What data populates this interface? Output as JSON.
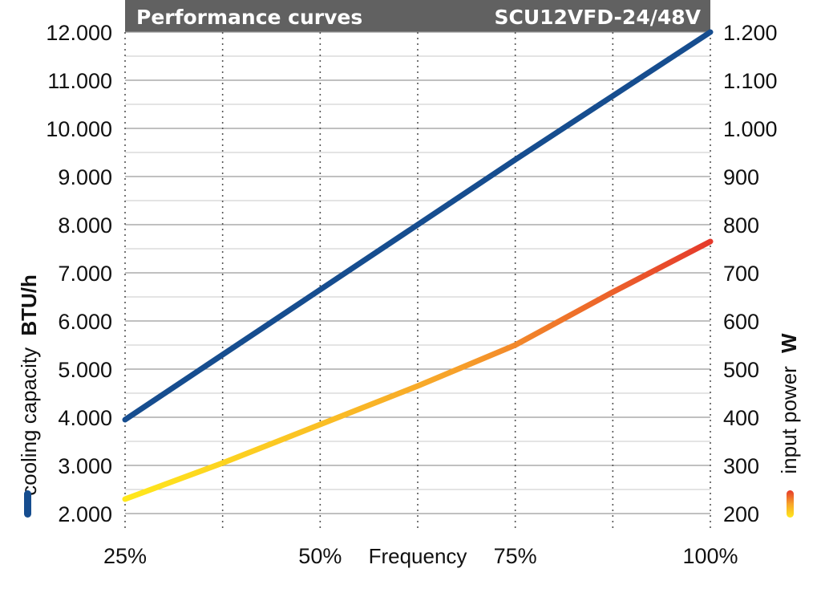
{
  "chart_data": {
    "type": "line",
    "title": "Performance curves",
    "subtitle": "SCU12VFD-24/48V",
    "xlabel": "Frequency",
    "x": [
      25,
      50,
      75,
      100
    ],
    "x_tick_labels": [
      "25%",
      "50%",
      "75%",
      "100%"
    ],
    "xlim": [
      25,
      100
    ],
    "y_left": {
      "label": "cooling capacity",
      "unit": "BTU/h",
      "ylim": [
        2000,
        12000
      ],
      "tick_labels": [
        "2.000",
        "3.000",
        "4.000",
        "5.000",
        "6.000",
        "7.000",
        "8.000",
        "9.000",
        "10.000",
        "11.000",
        "12.000"
      ]
    },
    "y_right": {
      "label": "input power",
      "unit": "W",
      "ylim": [
        200,
        1200
      ],
      "tick_labels": [
        "200",
        "300",
        "400",
        "500",
        "600",
        "700",
        "800",
        "900",
        "1.000",
        "1.100",
        "1.200"
      ]
    },
    "series": [
      {
        "axis": "left",
        "color": "#164d8f",
        "x": [
          25,
          50,
          75,
          100
        ],
        "values": [
          3950,
          6650,
          9350,
          12000
        ]
      },
      {
        "axis": "right",
        "colors": [
          "#ffe81c",
          "#f7a42a",
          "#e5392b"
        ],
        "x": [
          25,
          37.5,
          50,
          62.5,
          75,
          87.5,
          100
        ],
        "values": [
          230,
          305,
          385,
          465,
          550,
          660,
          765
        ]
      }
    ],
    "grid": true
  }
}
